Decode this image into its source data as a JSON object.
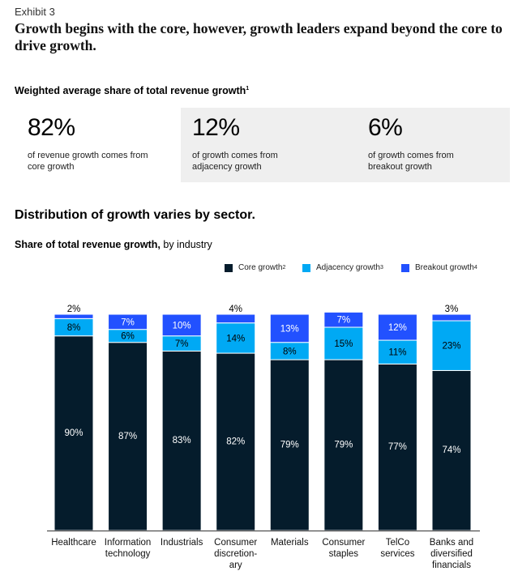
{
  "header": {
    "exhibit": "Exhibit 3",
    "headline": "Growth begins with the core, however, growth leaders expand beyond the core to drive growth.",
    "subhead": "Weighted average share of total revenue growth",
    "subhead_sup": "1"
  },
  "stats": [
    {
      "value": "82%",
      "desc": "of revenue growth comes from core growth"
    },
    {
      "value": "12%",
      "desc": "of growth comes from adjacency growth"
    },
    {
      "value": "6%",
      "desc": "of growth comes from breakout growth"
    }
  ],
  "section_title": "Distribution of growth varies by sector.",
  "chart_subtitle": {
    "bold": "Share of total revenue growth,",
    "rest": " by industry"
  },
  "legend": [
    {
      "label": "Core growth",
      "sup": "2",
      "color": "#051c2c"
    },
    {
      "label": "Adjacency growth",
      "sup": "3",
      "color": "#00a9f4"
    },
    {
      "label": "Breakout growth",
      "sup": "4",
      "color": "#2251ff"
    }
  ],
  "chart_data": {
    "type": "bar",
    "stacked": true,
    "categories": [
      "Healthcare",
      "Information technology",
      "Industrials",
      "Consumer discretion-ary",
      "Materials",
      "Consumer staples",
      "TelCo services",
      "Banks and diversified financials"
    ],
    "category_lines": [
      [
        "Healthcare"
      ],
      [
        "Information",
        "technology"
      ],
      [
        "Industrials"
      ],
      [
        "Consumer",
        "discretion-",
        "ary"
      ],
      [
        "Materials"
      ],
      [
        "Consumer",
        "staples"
      ],
      [
        "TelCo",
        "services"
      ],
      [
        "Banks and",
        "diversified",
        "financials"
      ]
    ],
    "series": [
      {
        "name": "Core growth",
        "color": "#051c2c",
        "values": [
          90,
          87,
          83,
          82,
          79,
          79,
          77,
          74
        ]
      },
      {
        "name": "Adjacency growth",
        "color": "#00a9f4",
        "values": [
          8,
          6,
          7,
          14,
          8,
          15,
          11,
          23
        ]
      },
      {
        "name": "Breakout growth",
        "color": "#2251ff",
        "values": [
          2,
          7,
          10,
          4,
          13,
          7,
          12,
          3
        ]
      }
    ],
    "labels": [
      [
        "90%",
        "87%",
        "83%",
        "82%",
        "79%",
        "79%",
        "77%",
        "74%"
      ],
      [
        "8%",
        "6%",
        "7%",
        "14%",
        "8%",
        "15%",
        "11%",
        "23%"
      ],
      [
        "2%",
        "7%",
        "10%",
        "4%",
        "13%",
        "7%",
        "12%",
        "3%"
      ]
    ],
    "ylim": [
      0,
      100
    ]
  }
}
